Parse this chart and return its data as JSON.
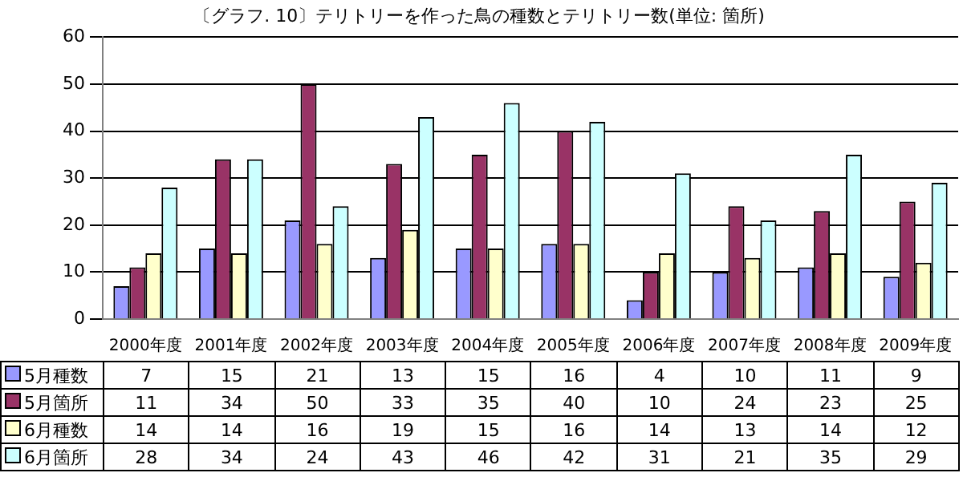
{
  "chart_data": {
    "type": "bar",
    "title": "〔グラフ. 10〕テリトリーを作った鳥の種数とテリトリー数(単位: 箇所)",
    "categories": [
      "2000年度",
      "2001年度",
      "2002年度",
      "2003年度",
      "2004年度",
      "2005年度",
      "2006年度",
      "2007年度",
      "2008年度",
      "2009年度"
    ],
    "series": [
      {
        "name": "5月種数",
        "color": "#9999ff",
        "values": [
          7,
          15,
          21,
          13,
          15,
          16,
          4,
          10,
          11,
          9
        ]
      },
      {
        "name": "5月箇所",
        "color": "#993366",
        "values": [
          11,
          34,
          50,
          33,
          35,
          40,
          10,
          24,
          23,
          25
        ]
      },
      {
        "name": "6月種数",
        "color": "#ffffcc",
        "values": [
          14,
          14,
          16,
          19,
          15,
          16,
          14,
          13,
          14,
          12
        ]
      },
      {
        "name": "6月箇所",
        "color": "#ccffff",
        "values": [
          28,
          34,
          24,
          43,
          46,
          42,
          31,
          21,
          35,
          29
        ]
      }
    ],
    "ylim": [
      0,
      60
    ],
    "yticks": [
      0,
      10,
      20,
      30,
      40,
      50,
      60
    ],
    "grid": "y",
    "data_labels": true,
    "legend": "bottom left"
  }
}
